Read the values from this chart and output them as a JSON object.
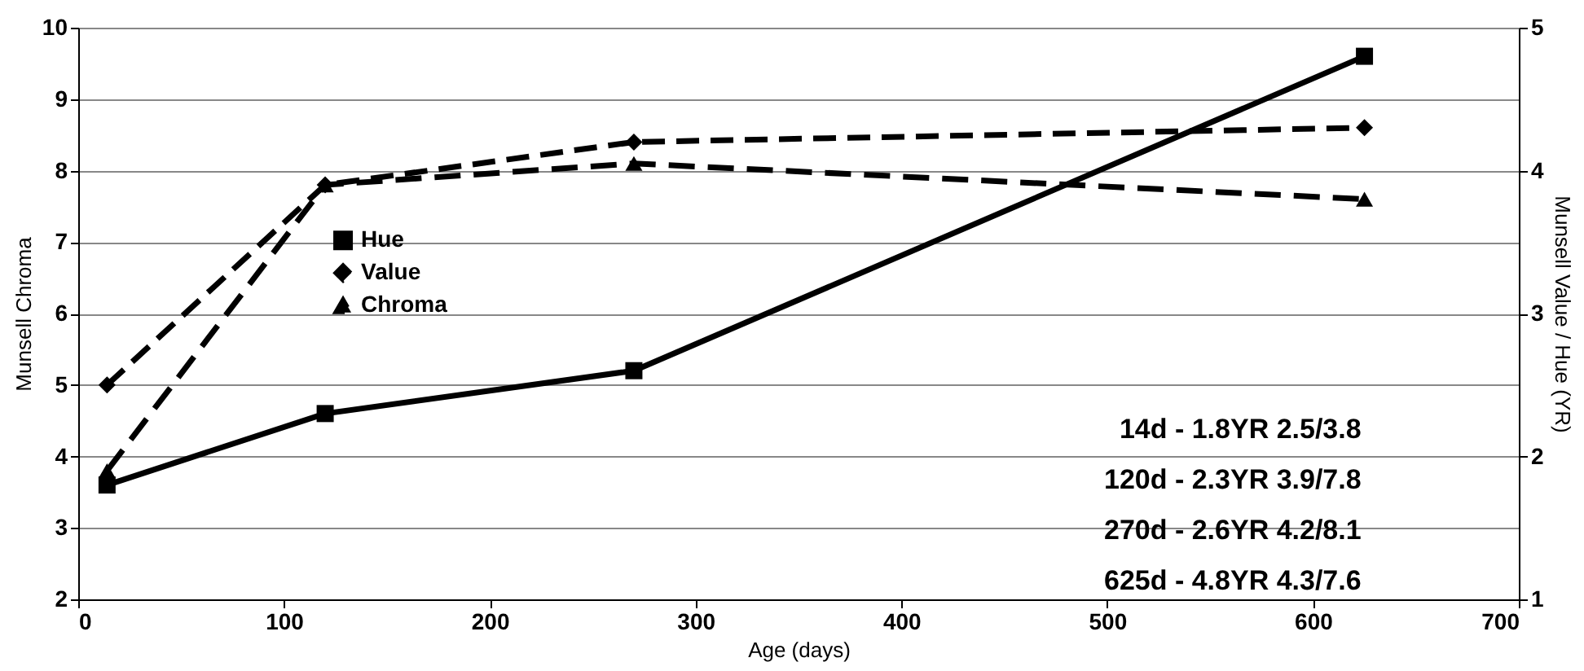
{
  "chart_data": {
    "type": "line",
    "xlabel": "Age (days)",
    "ylabel": "Munsell Chroma",
    "y2label": "Munsell Value / Hue (YR)",
    "xlim": [
      0,
      700
    ],
    "xticks": [
      0,
      100,
      200,
      300,
      400,
      500,
      600,
      700
    ],
    "ylim": [
      2,
      10
    ],
    "yticks": [
      2,
      3,
      4,
      5,
      6,
      7,
      8,
      9,
      10
    ],
    "y2lim": [
      1,
      5
    ],
    "y2ticks": [
      1,
      2,
      3,
      4,
      5
    ],
    "grid": "y",
    "legend": "left",
    "x": [
      14,
      120,
      270,
      625
    ],
    "series": [
      {
        "name": "Hue",
        "color": "#000000",
        "values": [
          1.8,
          2.3,
          2.6,
          4.8
        ],
        "axis": "y2",
        "marker": "square",
        "line_style": "solid"
      },
      {
        "name": "Value",
        "color": "#000000",
        "values": [
          2.5,
          3.9,
          4.2,
          4.3
        ],
        "axis": "y2",
        "marker": "diamond",
        "line_style": "dashed"
      },
      {
        "name": "Chroma",
        "color": "#000000",
        "values": [
          3.8,
          7.8,
          8.1,
          7.6
        ],
        "axis": "y",
        "marker": "triangle",
        "line_style": "dashed"
      }
    ],
    "annotations": [
      "14d - 1.8YR 2.5/3.8",
      "120d - 2.3YR 3.9/7.8",
      "270d - 2.6YR 4.2/8.1",
      "625d - 4.8YR 4.3/7.6"
    ]
  }
}
